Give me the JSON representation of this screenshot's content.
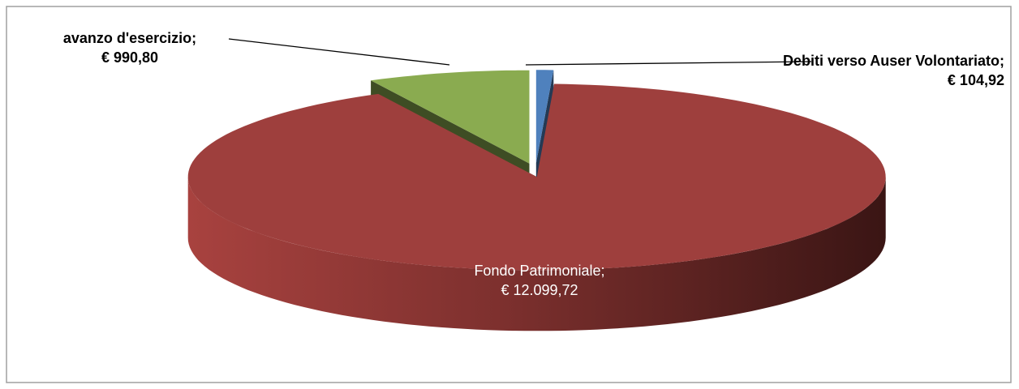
{
  "chart_data": {
    "type": "pie3d",
    "categories": [
      "Debiti verso Auser Volontariato",
      "Fondo Patrimoniale",
      "avanzo d'esercizio"
    ],
    "values": [
      104.92,
      12099.72,
      990.8
    ],
    "value_labels": [
      "€ 104,92",
      "€ 12.099,72",
      "€ 990,80"
    ],
    "separator": ";",
    "colors": [
      "#4f81bd",
      "#9e3f3d",
      "#8aab50"
    ]
  }
}
